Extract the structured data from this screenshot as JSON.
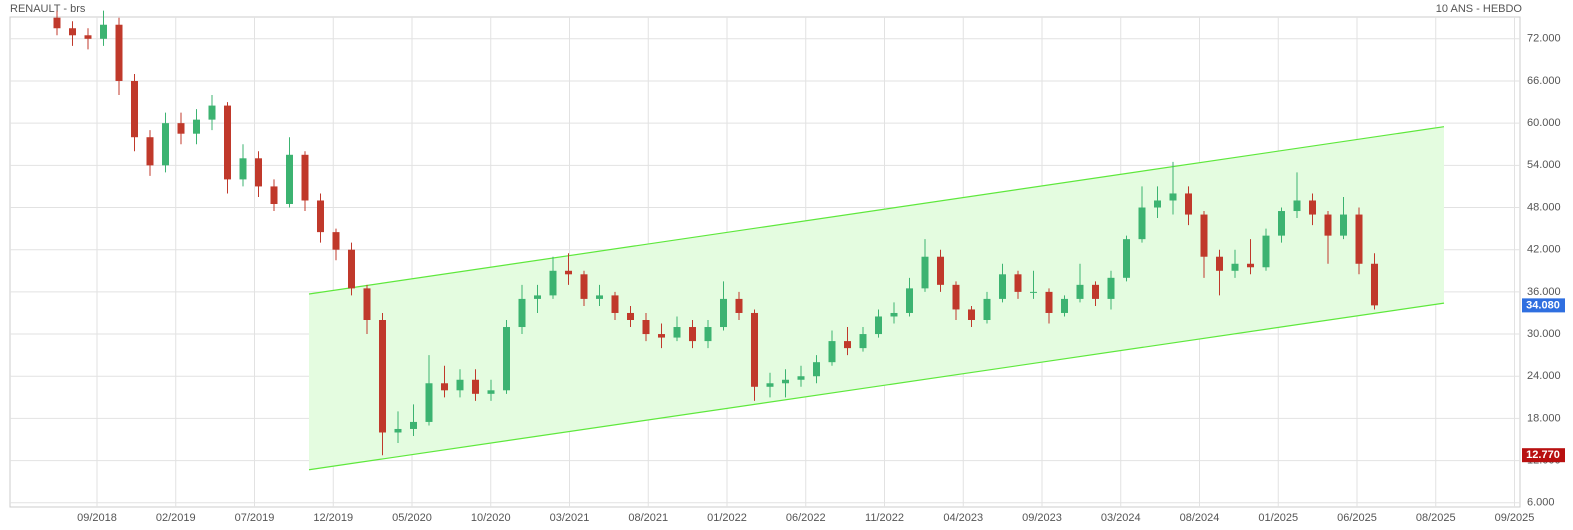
{
  "chart_data": {
    "type": "candlestick",
    "title": "RENAULT - brs",
    "subtitle": "10 ANS - HEBDO",
    "ylim": [
      5.4,
      75.1
    ],
    "yticks": [
      {
        "value": 6,
        "label": "6.000"
      },
      {
        "value": 12,
        "label": "12.000"
      },
      {
        "value": 18,
        "label": "18.000"
      },
      {
        "value": 24,
        "label": "24.000"
      },
      {
        "value": 30,
        "label": "30.000"
      },
      {
        "value": 36,
        "label": "36.000"
      },
      {
        "value": 42,
        "label": "42.000"
      },
      {
        "value": 48,
        "label": "48.000"
      },
      {
        "value": 54,
        "label": "54.000"
      },
      {
        "value": 60,
        "label": "60.000"
      },
      {
        "value": 66,
        "label": "66.000"
      },
      {
        "value": 72,
        "label": "72.000"
      }
    ],
    "xticks": [
      "09/2018",
      "02/2019",
      "07/2019",
      "12/2019",
      "05/2020",
      "10/2020",
      "03/2021",
      "08/2021",
      "01/2022",
      "06/2022",
      "11/2022",
      "04/2023",
      "09/2023",
      "03/2024",
      "08/2024",
      "01/2025",
      "06/2025",
      "08/2025",
      "09/2025"
    ],
    "grid": true,
    "up_color": "#3cb371",
    "down_color": "#c0392b",
    "candles": [
      [
        75,
        76,
        72.5,
        73.5
      ],
      [
        73.5,
        74.5,
        71,
        72.5
      ],
      [
        72.5,
        73.5,
        70.5,
        72
      ],
      [
        72,
        76,
        71,
        74
      ],
      [
        74,
        75,
        64,
        66
      ],
      [
        66,
        67,
        56,
        58
      ],
      [
        58,
        59,
        52.5,
        54
      ],
      [
        54,
        61.5,
        53,
        60
      ],
      [
        60,
        61.5,
        57,
        58.5
      ],
      [
        58.5,
        62,
        57,
        60.5
      ],
      [
        60.5,
        64,
        59,
        62.5
      ],
      [
        62.5,
        63,
        50,
        52
      ],
      [
        52,
        57,
        51,
        55
      ],
      [
        55,
        56,
        49.5,
        51
      ],
      [
        51,
        52,
        47.5,
        48.5
      ],
      [
        48.5,
        58,
        48,
        55.5
      ],
      [
        55.5,
        56,
        47.5,
        49
      ],
      [
        49,
        50,
        43,
        44.5
      ],
      [
        44.5,
        45,
        40.5,
        42
      ],
      [
        42,
        43,
        35.5,
        36.5
      ],
      [
        36.5,
        37,
        30,
        32
      ],
      [
        32,
        33,
        12.77,
        16
      ],
      [
        16,
        19,
        14.5,
        16.5
      ],
      [
        16.5,
        20,
        15.5,
        17.5
      ],
      [
        17.5,
        27,
        17,
        23
      ],
      [
        23,
        25.5,
        21,
        22
      ],
      [
        22,
        25,
        21,
        23.5
      ],
      [
        23.5,
        25,
        20.5,
        21.5
      ],
      [
        21.5,
        23.5,
        20.5,
        22
      ],
      [
        22,
        32,
        21.5,
        31
      ],
      [
        31,
        37,
        30,
        35
      ],
      [
        35,
        37,
        33,
        35.5
      ],
      [
        35.5,
        41,
        35,
        39
      ],
      [
        39,
        41.5,
        37,
        38.5
      ],
      [
        38.5,
        39,
        34,
        35
      ],
      [
        35,
        37,
        34,
        35.5
      ],
      [
        35.5,
        36,
        32,
        33
      ],
      [
        33,
        34,
        31,
        32
      ],
      [
        32,
        33,
        29,
        30
      ],
      [
        30,
        31.5,
        28,
        29.5
      ],
      [
        29.5,
        32.5,
        29,
        31
      ],
      [
        31,
        32,
        28,
        29
      ],
      [
        29,
        32,
        28,
        31
      ],
      [
        31,
        37.5,
        30.5,
        35
      ],
      [
        35,
        36,
        32,
        33
      ],
      [
        33,
        33.5,
        20.5,
        22.5
      ],
      [
        22.5,
        24.5,
        21,
        23
      ],
      [
        23,
        25,
        21,
        23.5
      ],
      [
        23.5,
        25.5,
        22.5,
        24
      ],
      [
        24,
        27,
        23,
        26
      ],
      [
        26,
        30.5,
        25.5,
        29
      ],
      [
        29,
        31,
        27,
        28
      ],
      [
        28,
        31,
        27.5,
        30
      ],
      [
        30,
        33.5,
        29.5,
        32.5
      ],
      [
        32.5,
        34.5,
        31.5,
        33
      ],
      [
        33,
        38,
        32.5,
        36.5
      ],
      [
        36.5,
        43.5,
        36,
        41
      ],
      [
        41,
        42,
        36,
        37
      ],
      [
        37,
        37.5,
        32,
        33.5
      ],
      [
        33.5,
        34,
        31,
        32
      ],
      [
        32,
        36,
        31.5,
        35
      ],
      [
        35,
        40,
        34.5,
        38.5
      ],
      [
        38.5,
        39,
        35,
        36
      ],
      [
        36,
        39,
        35,
        36
      ],
      [
        36,
        36.5,
        31.5,
        33
      ],
      [
        33,
        35.5,
        32.5,
        35
      ],
      [
        35,
        40,
        34.5,
        37
      ],
      [
        37,
        37.5,
        34,
        35
      ],
      [
        35,
        39,
        33.5,
        38
      ],
      [
        38,
        44,
        37.5,
        43.5
      ],
      [
        43.5,
        51,
        43,
        48
      ],
      [
        48,
        51,
        46.5,
        49
      ],
      [
        49,
        54.5,
        47,
        50
      ],
      [
        50,
        51,
        45.5,
        47
      ],
      [
        47,
        47.5,
        38,
        41
      ],
      [
        41,
        42,
        35.5,
        39
      ],
      [
        39,
        42,
        38,
        40
      ],
      [
        40,
        43.5,
        38.5,
        39.5
      ],
      [
        39.5,
        45,
        39,
        44
      ],
      [
        44,
        48,
        43,
        47.5
      ],
      [
        47.5,
        53,
        46.5,
        49
      ],
      [
        49,
        50,
        45.5,
        47
      ],
      [
        47,
        47.5,
        40,
        44
      ],
      [
        44,
        49.5,
        43.5,
        47
      ],
      [
        47,
        48,
        38.5,
        40
      ],
      [
        40,
        41.5,
        33.5,
        34.08
      ]
    ],
    "channel": {
      "color": "#5ee83c",
      "fill": "#e4fce0",
      "upper": [
        35.7,
        59.5
      ],
      "lower": [
        10.7,
        34.4
      ]
    },
    "last_price": {
      "value": 34.08,
      "label": "34.080",
      "color": "#2f6fe0"
    },
    "low_price": {
      "value": 12.77,
      "label": "12.770",
      "color": "#b81010"
    }
  }
}
